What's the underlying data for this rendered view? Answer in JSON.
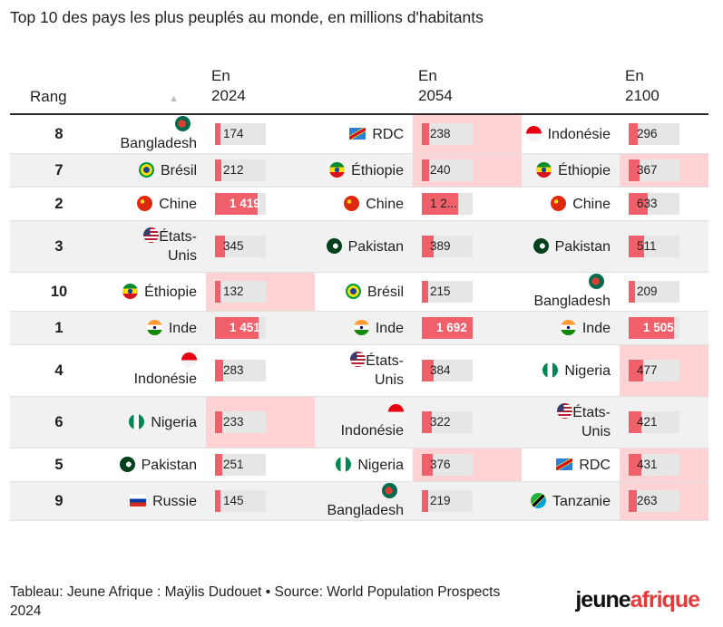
{
  "title": "Top 10 des pays les plus peuplés au monde, en millions d'habitants",
  "headers": {
    "rank": "Rang",
    "sort_icon": "▲",
    "y2024": [
      "En",
      "2024"
    ],
    "y2054": [
      "En",
      "2054"
    ],
    "y2100": [
      "En",
      "2100"
    ]
  },
  "footer": {
    "credit": "Tableau: Jeune Afrique : Maÿlis Dudouet • Source: World Population Prospects 2024"
  },
  "logo": {
    "part1": "jeune",
    "part2": "afrique"
  },
  "colors": {
    "bar": "#f0606a",
    "track": "#e6e6e6",
    "highlight": "#ffd3d3",
    "row_alt": "#f1f1f1"
  },
  "chart_data": {
    "type": "table",
    "title": "Top 10 des pays les plus peuplés au monde, en millions d'habitants",
    "scale_max": 1692,
    "columns": [
      "Rang",
      "En 2024",
      "En 2054",
      "En 2100"
    ],
    "rows": [
      {
        "rank": "8",
        "c2024": {
          "name": "Bangladesh",
          "flag": "bangladesh",
          "value": 174,
          "label": "174",
          "hi": false
        },
        "c2054": {
          "name": "RDC",
          "flag": "rdc",
          "value": 238,
          "label": "238",
          "hi": true
        },
        "c2100": {
          "name": "Indonésie",
          "flag": "indonesia",
          "value": 296,
          "label": "296",
          "hi": false
        }
      },
      {
        "rank": "7",
        "c2024": {
          "name": "Brésil",
          "flag": "brazil",
          "value": 212,
          "label": "212",
          "hi": false
        },
        "c2054": {
          "name": "Éthiopie",
          "flag": "ethiopia",
          "value": 240,
          "label": "240",
          "hi": true
        },
        "c2100": {
          "name": "Éthiopie",
          "flag": "ethiopia",
          "value": 367,
          "label": "367",
          "hi": true
        }
      },
      {
        "rank": "2",
        "c2024": {
          "name": "Chine",
          "flag": "china",
          "value": 1419,
          "label": "1 419",
          "hi": false
        },
        "c2054": {
          "name": "Chine",
          "flag": "china",
          "value": 1200,
          "label": "1 2...",
          "hi": false
        },
        "c2100": {
          "name": "Chine",
          "flag": "china",
          "value": 633,
          "label": "633",
          "hi": false
        }
      },
      {
        "rank": "3",
        "c2024": {
          "name": "États-Unis",
          "flag": "usa",
          "value": 345,
          "label": "345",
          "hi": false
        },
        "c2054": {
          "name": "Pakistan",
          "flag": "pakistan",
          "value": 389,
          "label": "389",
          "hi": false
        },
        "c2100": {
          "name": "Pakistan",
          "flag": "pakistan",
          "value": 511,
          "label": "511",
          "hi": false
        }
      },
      {
        "rank": "10",
        "c2024": {
          "name": "Éthiopie",
          "flag": "ethiopia",
          "value": 132,
          "label": "132",
          "hi": true
        },
        "c2054": {
          "name": "Brésil",
          "flag": "brazil",
          "value": 215,
          "label": "215",
          "hi": false
        },
        "c2100": {
          "name": "Bangladesh",
          "flag": "bangladesh",
          "value": 209,
          "label": "209",
          "hi": false
        }
      },
      {
        "rank": "1",
        "c2024": {
          "name": "Inde",
          "flag": "india",
          "value": 1451,
          "label": "1 451",
          "hi": false
        },
        "c2054": {
          "name": "Inde",
          "flag": "india",
          "value": 1692,
          "label": "1 692",
          "hi": false
        },
        "c2100": {
          "name": "Inde",
          "flag": "india",
          "value": 1505,
          "label": "1 505",
          "hi": false
        }
      },
      {
        "rank": "4",
        "c2024": {
          "name": "Indonésie",
          "flag": "indonesia",
          "value": 283,
          "label": "283",
          "hi": false
        },
        "c2054": {
          "name": "États-Unis",
          "flag": "usa",
          "value": 384,
          "label": "384",
          "hi": false
        },
        "c2100": {
          "name": "Nigeria",
          "flag": "nigeria",
          "value": 477,
          "label": "477",
          "hi": true
        }
      },
      {
        "rank": "6",
        "c2024": {
          "name": "Nigeria",
          "flag": "nigeria",
          "value": 233,
          "label": "233",
          "hi": true
        },
        "c2054": {
          "name": "Indonésie",
          "flag": "indonesia",
          "value": 322,
          "label": "322",
          "hi": false
        },
        "c2100": {
          "name": "États-Unis",
          "flag": "usa",
          "value": 421,
          "label": "421",
          "hi": false
        }
      },
      {
        "rank": "5",
        "c2024": {
          "name": "Pakistan",
          "flag": "pakistan",
          "value": 251,
          "label": "251",
          "hi": false
        },
        "c2054": {
          "name": "Nigeria",
          "flag": "nigeria",
          "value": 376,
          "label": "376",
          "hi": true
        },
        "c2100": {
          "name": "RDC",
          "flag": "rdc",
          "value": 431,
          "label": "431",
          "hi": true
        }
      },
      {
        "rank": "9",
        "c2024": {
          "name": "Russie",
          "flag": "russia",
          "value": 145,
          "label": "145",
          "hi": false
        },
        "c2054": {
          "name": "Bangladesh",
          "flag": "bangladesh",
          "value": 219,
          "label": "219",
          "hi": false
        },
        "c2100": {
          "name": "Tanzanie",
          "flag": "tanzania",
          "value": 263,
          "label": "263",
          "hi": true
        }
      }
    ]
  }
}
